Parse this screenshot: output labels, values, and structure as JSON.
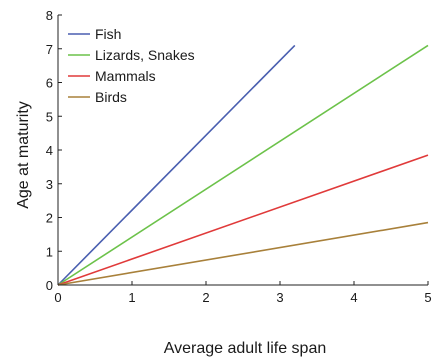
{
  "chart_data": {
    "type": "line",
    "xlabel": "Average adult life span",
    "ylabel": "Age at maturity",
    "xlim": [
      0,
      5
    ],
    "ylim": [
      0,
      8
    ],
    "xticks": [
      0,
      1,
      2,
      3,
      4,
      5
    ],
    "yticks": [
      0,
      1,
      2,
      3,
      4,
      5,
      6,
      7,
      8
    ],
    "grid": false,
    "legend_position": "top-left",
    "series": [
      {
        "name": "Fish",
        "color": "#4a5fb0",
        "x": [
          0,
          3.2
        ],
        "y": [
          0,
          7.1
        ]
      },
      {
        "name": "Lizards, Snakes",
        "color": "#6cc24a",
        "x": [
          0,
          5
        ],
        "y": [
          0,
          7.1
        ]
      },
      {
        "name": "Mammals",
        "color": "#e03a3a",
        "x": [
          0,
          5
        ],
        "y": [
          0,
          3.85
        ]
      },
      {
        "name": "Birds",
        "color": "#a8803a",
        "x": [
          0,
          5
        ],
        "y": [
          0,
          1.85
        ]
      }
    ]
  }
}
